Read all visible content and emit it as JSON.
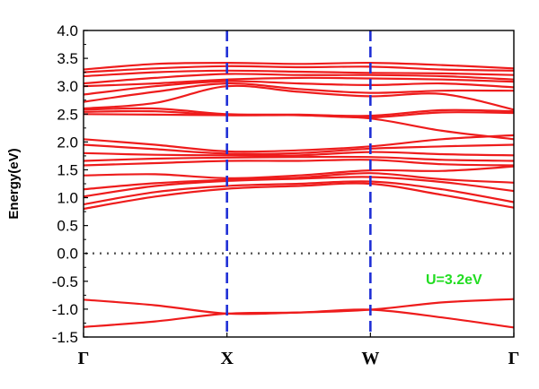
{
  "chart_data": {
    "type": "line",
    "title": "",
    "xlabel": "",
    "ylabel": "Energy(eV)",
    "ylim": [
      -1.5,
      4.0
    ],
    "yticks": [
      -1.5,
      -1.0,
      -0.5,
      0.0,
      0.5,
      1.0,
      1.5,
      2.0,
      2.5,
      3.0,
      3.5,
      4.0
    ],
    "ytick_labels": [
      "-1.5",
      "-1.0",
      "-0.5",
      "0.0",
      "0.5",
      "1.0",
      "1.5",
      "2.0",
      "2.5",
      "3.0",
      "3.5",
      "4.0"
    ],
    "kpoints": [
      {
        "label": "Γ",
        "x": 0
      },
      {
        "label": "X",
        "x": 1
      },
      {
        "label": "W",
        "x": 2
      },
      {
        "label": "Γ",
        "x": 3
      }
    ],
    "xlim": [
      0,
      3
    ],
    "fermi_level": 0.0,
    "annotation": "U=3.2eV",
    "colors": {
      "bands": "#ee1c1c",
      "kline": "#1f2fd6",
      "fermi": "#555555",
      "annotation": "#22dd22"
    },
    "series": [
      {
        "x": [
          0,
          0.5,
          1,
          1.5,
          2,
          2.5,
          3
        ],
        "values": [
          -0.83,
          -0.93,
          -1.08,
          -1.06,
          -1.01,
          -1.15,
          -1.33
        ]
      },
      {
        "x": [
          0,
          0.5,
          1,
          1.5,
          2,
          2.5,
          3
        ],
        "values": [
          -1.32,
          -1.22,
          -1.08,
          -1.06,
          -1.01,
          -0.88,
          -0.82
        ]
      },
      {
        "x": [
          0,
          0.5,
          1,
          1.5,
          2,
          2.5,
          3
        ],
        "values": [
          0.8,
          1.02,
          1.16,
          1.21,
          1.25,
          1.05,
          0.82
        ]
      },
      {
        "x": [
          0,
          0.5,
          1,
          1.5,
          2,
          2.5,
          3
        ],
        "values": [
          0.88,
          1.1,
          1.21,
          1.25,
          1.29,
          1.15,
          0.92
        ]
      },
      {
        "x": [
          0,
          0.5,
          1,
          1.5,
          2,
          2.5,
          3
        ],
        "values": [
          1.02,
          1.21,
          1.3,
          1.34,
          1.37,
          1.28,
          1.12
        ]
      },
      {
        "x": [
          0,
          0.5,
          1,
          1.5,
          2,
          2.5,
          3
        ],
        "values": [
          1.15,
          1.26,
          1.32,
          1.36,
          1.44,
          1.33,
          1.27
        ]
      },
      {
        "x": [
          0,
          0.5,
          1,
          1.5,
          2,
          2.5,
          3
        ],
        "values": [
          1.4,
          1.42,
          1.35,
          1.4,
          1.49,
          1.48,
          1.56
        ]
      },
      {
        "x": [
          0,
          0.5,
          1,
          1.5,
          2,
          2.5,
          3
        ],
        "values": [
          1.58,
          1.62,
          1.66,
          1.66,
          1.68,
          1.6,
          1.58
        ]
      },
      {
        "x": [
          0,
          0.5,
          1,
          1.5,
          2,
          2.5,
          3
        ],
        "values": [
          1.66,
          1.7,
          1.72,
          1.73,
          1.73,
          1.68,
          1.66
        ]
      },
      {
        "x": [
          0,
          0.5,
          1,
          1.5,
          2,
          2.5,
          3
        ],
        "values": [
          1.8,
          1.77,
          1.76,
          1.76,
          1.82,
          1.78,
          1.76
        ]
      },
      {
        "x": [
          0,
          0.5,
          1,
          1.5,
          2,
          2.5,
          3
        ],
        "values": [
          1.95,
          1.87,
          1.79,
          1.8,
          1.88,
          1.92,
          1.95
        ]
      },
      {
        "x": [
          0,
          0.5,
          1,
          1.5,
          2,
          2.5,
          3
        ],
        "values": [
          2.05,
          1.95,
          1.83,
          1.85,
          1.92,
          2.05,
          2.12
        ]
      },
      {
        "x": [
          0,
          0.5,
          1,
          1.5,
          2,
          2.5,
          3
        ],
        "values": [
          2.5,
          2.49,
          2.48,
          2.48,
          2.42,
          2.2,
          2.05
        ]
      },
      {
        "x": [
          0,
          0.5,
          1,
          1.5,
          2,
          2.5,
          3
        ],
        "values": [
          2.54,
          2.55,
          2.48,
          2.48,
          2.44,
          2.53,
          2.52
        ]
      },
      {
        "x": [
          0,
          0.5,
          1,
          1.5,
          2,
          2.5,
          3
        ],
        "values": [
          2.58,
          2.6,
          2.5,
          2.49,
          2.47,
          2.57,
          2.55
        ]
      },
      {
        "x": [
          0,
          0.5,
          1,
          1.5,
          2,
          2.5,
          3
        ],
        "values": [
          2.6,
          2.7,
          3.0,
          2.9,
          2.82,
          2.86,
          2.58
        ]
      },
      {
        "x": [
          0,
          0.5,
          1,
          1.5,
          2,
          2.5,
          3
        ],
        "values": [
          2.72,
          2.9,
          3.05,
          2.95,
          2.88,
          2.92,
          2.92
        ]
      },
      {
        "x": [
          0,
          0.5,
          1,
          1.5,
          2,
          2.5,
          3
        ],
        "values": [
          2.85,
          3.0,
          3.09,
          3.05,
          3.02,
          3.05,
          2.98
        ]
      },
      {
        "x": [
          0,
          0.5,
          1,
          1.5,
          2,
          2.5,
          3
        ],
        "values": [
          3.0,
          3.05,
          3.12,
          3.15,
          3.14,
          3.12,
          3.08
        ]
      },
      {
        "x": [
          0,
          0.5,
          1,
          1.5,
          2,
          2.5,
          3
        ],
        "values": [
          3.05,
          3.15,
          3.22,
          3.2,
          3.2,
          3.18,
          3.12
        ]
      },
      {
        "x": [
          0,
          0.5,
          1,
          1.5,
          2,
          2.5,
          3
        ],
        "values": [
          3.18,
          3.25,
          3.28,
          3.26,
          3.24,
          3.23,
          3.2
        ]
      },
      {
        "x": [
          0,
          0.5,
          1,
          1.5,
          2,
          2.5,
          3
        ],
        "values": [
          3.25,
          3.32,
          3.36,
          3.34,
          3.35,
          3.3,
          3.28
        ]
      },
      {
        "x": [
          0,
          0.5,
          1,
          1.5,
          2,
          2.5,
          3
        ],
        "values": [
          3.3,
          3.4,
          3.42,
          3.4,
          3.42,
          3.38,
          3.32
        ]
      }
    ]
  }
}
